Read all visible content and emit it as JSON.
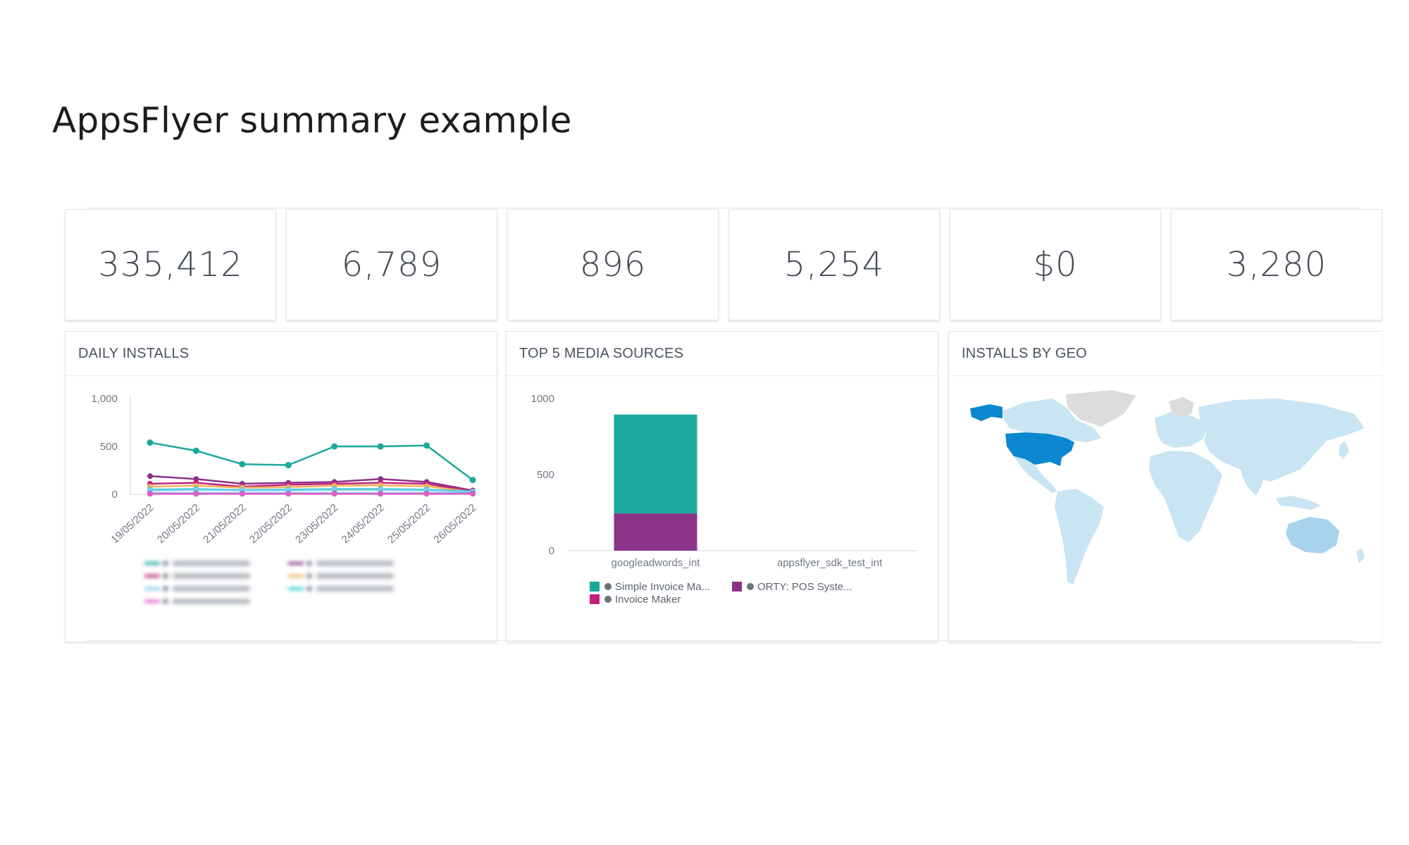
{
  "page_title": "AppsFlyer summary example",
  "kpis": [
    "335,412",
    "6,789",
    "896",
    "5,254",
    "$0",
    "3,280"
  ],
  "panels": {
    "daily": {
      "title": "DAILY INSTALLS"
    },
    "media": {
      "title": "TOP 5 MEDIA SOURCES"
    },
    "geo": {
      "title": "INSTALLS BY GEO"
    }
  },
  "colors": {
    "teal": "#1ba99b",
    "purple": "#8b3289",
    "magenta": "#c4217d",
    "pink": "#e05fc4",
    "orange": "#f0b35a",
    "light_blue": "#7fd0ee",
    "cyan": "#37c7d1",
    "blue": "#4a8fe0",
    "map_highlight": "#0b86d0",
    "map_light": "#c9e4f2",
    "map_none": "#dcdcdc"
  },
  "chart_data": [
    {
      "type": "line",
      "title": "DAILY INSTALLS",
      "x": [
        "19/05/2022",
        "20/05/2022",
        "21/05/2022",
        "22/05/2022",
        "23/05/2022",
        "24/05/2022",
        "25/05/2022",
        "26/05/2022"
      ],
      "y_ticks": [
        "1,000",
        "500",
        "0"
      ],
      "ylim": [
        0,
        1000
      ],
      "series": [
        {
          "values": [
            540,
            455,
            315,
            305,
            500,
            500,
            510,
            150
          ],
          "color": "teal"
        },
        {
          "values": [
            190,
            160,
            110,
            120,
            130,
            160,
            130,
            40
          ],
          "color": "purple"
        },
        {
          "values": [
            110,
            120,
            80,
            100,
            110,
            120,
            110,
            30
          ],
          "color": "magenta"
        },
        {
          "values": [
            80,
            90,
            70,
            75,
            90,
            95,
            85,
            25
          ],
          "color": "orange"
        },
        {
          "values": [
            50,
            55,
            45,
            50,
            55,
            55,
            50,
            30
          ],
          "color": "cyan"
        },
        {
          "values": [
            40,
            45,
            40,
            40,
            45,
            45,
            40,
            25
          ],
          "color": "light_blue"
        },
        {
          "values": [
            10,
            10,
            10,
            10,
            10,
            10,
            10,
            10
          ],
          "color": "blue"
        },
        {
          "values": [
            5,
            5,
            5,
            5,
            5,
            5,
            5,
            5
          ],
          "color": "pink"
        }
      ]
    },
    {
      "type": "bar",
      "title": "TOP 5 MEDIA SOURCES",
      "stacked": true,
      "categories": [
        "googleadwords_int",
        "appsflyer_sdk_test_int"
      ],
      "y_ticks": [
        "1000",
        "500",
        "0"
      ],
      "ylim": [
        0,
        1000
      ],
      "series": [
        {
          "name": "Simple Invoice Ma...",
          "values": [
            650,
            0
          ],
          "color": "teal"
        },
        {
          "name": "ORTY: POS Syste...",
          "values": [
            245,
            0
          ],
          "color": "purple"
        },
        {
          "name": "Invoice Maker",
          "values": [
            0,
            0
          ],
          "color": "magenta"
        }
      ]
    }
  ]
}
